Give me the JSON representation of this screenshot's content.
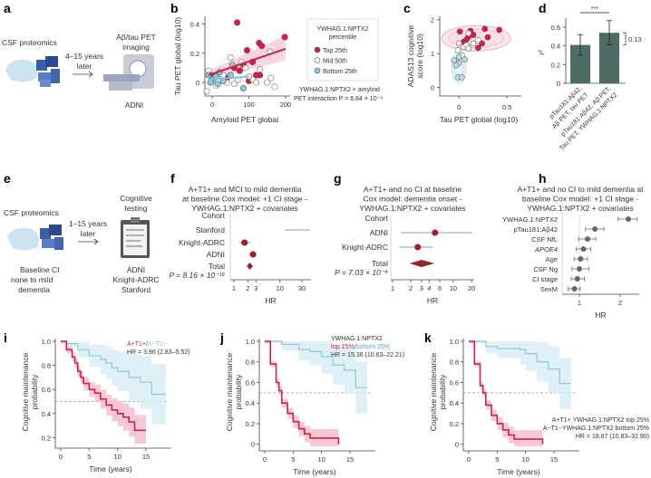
{
  "panels": {
    "a": "a",
    "b": "b",
    "c": "c",
    "d": "d",
    "e": "e",
    "f": "f",
    "g": "g",
    "h": "h",
    "i": "i",
    "j": "j",
    "k": "k"
  },
  "a": {
    "left": "CSF proteomics",
    "arrow1": "4–15 years",
    "arrow2": "later",
    "right1": "Aβ/tau PET",
    "right2": "imaging",
    "cohort": "ADNI"
  },
  "e": {
    "left": "CSF proteomics",
    "arrow1": "1–15 years",
    "arrow2": "later",
    "right1": "Cognitive",
    "right2": "testing",
    "bottom1": "Baseline CI",
    "bottom2": "none to mild",
    "bottom3": "dementia",
    "c1": "ADNI",
    "c2": "Knight-ADRC",
    "c3": "Stanford"
  },
  "colors": {
    "red": "#c8234a",
    "blue": "#8fc8dc",
    "grey": "#888888",
    "bar": "#4e6b66",
    "dark": "#9b2226"
  },
  "chart_data": [
    {
      "id": "b",
      "type": "scatter",
      "xlabel": "Amyloid PET global",
      "ylabel": "Tau PET global (log10)",
      "xticks": [
        "0",
        "100",
        "200"
      ],
      "yticks": [
        "0",
        "0.2",
        "0.4"
      ],
      "xlim": [
        -20,
        210
      ],
      "ylim": [
        -0.08,
        0.44
      ],
      "legend": {
        "title1": "YWHAG.1:NPTX2",
        "title2": "percentile",
        "items": [
          "Top 25th",
          "Mid 50th",
          "Bottom 25th"
        ],
        "placement": "right"
      },
      "note1": "YWHAG.1:NPTX2 × amyloid",
      "note2": "PET interaction P = 6.84 × 10⁻⁴",
      "series": [
        {
          "name": "Top 25th",
          "points": [
            [
              68,
              0.41
            ],
            [
              198,
              0.31
            ],
            [
              128,
              0.27
            ],
            [
              135,
              0.25
            ],
            [
              95,
              0.22
            ],
            [
              110,
              0.14
            ],
            [
              85,
              0.12
            ],
            [
              60,
              0.1
            ],
            [
              130,
              0.05
            ],
            [
              100,
              0.01
            ],
            [
              120,
              0.05
            ],
            [
              40,
              0.03
            ],
            [
              -5,
              0.05
            ],
            [
              75,
              0.08
            ]
          ]
        },
        {
          "name": "Mid 50th",
          "points": [
            [
              158,
              0.21
            ],
            [
              50,
              0.17
            ],
            [
              80,
              0.14
            ],
            [
              -10,
              0.08
            ],
            [
              20,
              0.06
            ],
            [
              30,
              0.05
            ],
            [
              90,
              0.1
            ],
            [
              130,
              0.09
            ],
            [
              150,
              0.0
            ],
            [
              170,
              -0.03
            ],
            [
              160,
              0.03
            ],
            [
              110,
              0.02
            ],
            [
              70,
              0.02
            ],
            [
              40,
              0.0
            ],
            [
              10,
              -0.02
            ],
            [
              -15,
              -0.06
            ],
            [
              60,
              -0.01
            ],
            [
              100,
              0.04
            ],
            [
              5,
              0.03
            ],
            [
              120,
              0.0
            ]
          ]
        },
        {
          "name": "Bottom 25th",
          "points": [
            [
              -10,
              0.05
            ],
            [
              0,
              0.02
            ],
            [
              10,
              0.04
            ],
            [
              20,
              0.07
            ],
            [
              55,
              0.12
            ],
            [
              85,
              -0.04
            ],
            [
              30,
              0.01
            ],
            [
              50,
              0.05
            ],
            [
              -5,
              0.0
            ],
            [
              15,
              -0.01
            ]
          ]
        }
      ],
      "fits": [
        {
          "name": "Top 25th",
          "x": [
            -10,
            200
          ],
          "y": [
            0.05,
            0.23
          ]
        },
        {
          "name": "Bottom 25th",
          "x": [
            -10,
            100
          ],
          "y": [
            0.02,
            0.04
          ]
        }
      ]
    },
    {
      "id": "c",
      "type": "scatter",
      "xlabel": "Tau PET global (log10)",
      "ylabel1": "ADAS13 cognitive",
      "ylabel2": "score (log10)",
      "xticks": [
        "0",
        "0.5"
      ],
      "yticks": [
        "0",
        "1",
        "2"
      ],
      "xlim": [
        -0.2,
        0.65
      ],
      "ylim": [
        -0.25,
        2.1
      ],
      "series": [
        {
          "name": "Top 25th",
          "points": [
            [
              0.01,
              1.65
            ],
            [
              0.12,
              1.67
            ],
            [
              0.27,
              1.73
            ],
            [
              0.42,
              1.7
            ],
            [
              0.3,
              1.48
            ],
            [
              0.24,
              1.3
            ],
            [
              0.2,
              1.17
            ],
            [
              0.1,
              1.5
            ],
            [
              0.05,
              1.35
            ],
            [
              0.15,
              1.55
            ],
            [
              0.08,
              1.42
            ]
          ]
        },
        {
          "name": "Mid 50th",
          "points": [
            [
              0.1,
              1.6
            ],
            [
              0.2,
              1.4
            ],
            [
              0.0,
              1.3
            ],
            [
              0.05,
              1.2
            ],
            [
              -0.01,
              1.1
            ],
            [
              0.08,
              1.25
            ],
            [
              0.15,
              1.3
            ],
            [
              0.03,
              0.95
            ],
            [
              0.1,
              1.15
            ]
          ]
        },
        {
          "name": "Bottom 25th",
          "points": [
            [
              -0.05,
              0.8
            ],
            [
              0.0,
              0.72
            ],
            [
              -0.03,
              0.65
            ],
            [
              0.06,
              0.83
            ],
            [
              -0.01,
              0.3
            ],
            [
              0.03,
              0.3
            ],
            [
              0.0,
              0.9
            ]
          ]
        }
      ]
    },
    {
      "id": "d",
      "type": "bar",
      "ylabel": "r²",
      "yticks": [
        "0",
        "0.2",
        "0.4",
        "0.6"
      ],
      "ylim": [
        0,
        0.7
      ],
      "categories": [
        [
          "pTau181:Aβ42,",
          "Aβ PET, tau PET"
        ],
        [
          "pTau181:Aβ42, Aβ PET,",
          "Tau PET, YWHAG.1:NPTX2"
        ]
      ],
      "values": [
        0.41,
        0.54
      ],
      "errors": [
        [
          0.3,
          0.52
        ],
        [
          0.41,
          0.67
        ]
      ],
      "significance": "***",
      "delta": "0.13"
    },
    {
      "id": "f",
      "type": "forest",
      "title": [
        "A+T1+ and MCI to mild dementia",
        "at baseline Cox model: +1 CI stage -",
        "YWHAG.1:NPTX2 + covariates"
      ],
      "header": "Cohort",
      "xlabel": "HR",
      "xticks": [
        "1",
        "2",
        "3",
        "10",
        "30"
      ],
      "xtickvals": [
        1,
        2,
        3,
        10,
        30
      ],
      "rows": [
        {
          "label": "Stanford",
          "hr": null,
          "lo": 13,
          "hi": 45
        },
        {
          "label": "Knight-ADRC",
          "hr": 1.7,
          "lo": 1.3,
          "hi": 2.3
        },
        {
          "label": "ADNI",
          "hr": 2.6,
          "lo": 2.1,
          "hi": 3.1
        }
      ],
      "total": {
        "label": "Total",
        "hr": 2.2,
        "lo": 1.9,
        "hi": 2.6
      },
      "p": "P = 8.16 × 10⁻¹⁶"
    },
    {
      "id": "g",
      "type": "forest",
      "title": [
        "A+T1+ and no CI at baseline",
        "Cox model: dementia onset -",
        "YWHAG.1:NPTX2 + covariates"
      ],
      "header": "Cohort",
      "xlabel": "HR",
      "xticks": [
        "1",
        "2",
        "3",
        "4",
        "6",
        "10",
        "20"
      ],
      "xtickvals": [
        1,
        2,
        3,
        4,
        6,
        10,
        20
      ],
      "rows": [
        {
          "label": "ADNI",
          "hr": 5.0,
          "lo": 1.4,
          "hi": 20.5
        },
        {
          "label": "Knight-ADRC",
          "hr": 2.6,
          "lo": 1.3,
          "hi": 4.6
        }
      ],
      "total": {
        "label": "Total",
        "hr": 3.0,
        "lo": 1.9,
        "hi": 4.9
      },
      "p": "P = 7.03 × 10⁻⁴"
    },
    {
      "id": "h",
      "type": "forest",
      "title": [
        "A+T1+ and no CI to mild dementia at",
        "baseline Cox model: +1 CI stage -",
        "YWHAG.1:NPTX2 + covariates"
      ],
      "xlabel": "HR",
      "xticks": [
        "1",
        "2"
      ],
      "xtickvals": [
        1,
        2
      ],
      "rows": [
        {
          "label": "YWHAG.1:NPTX2",
          "hr": 2.2,
          "lo": 1.95,
          "hi": 2.42
        },
        {
          "label": "pTau181:Aβ42",
          "hr": 1.38,
          "lo": 1.15,
          "hi": 1.6
        },
        {
          "label": "CSF NfL",
          "hr": 1.2,
          "lo": 0.98,
          "hi": 1.4
        },
        {
          "label": "APOE4",
          "hr": 1.1,
          "lo": 0.92,
          "hi": 1.28
        },
        {
          "label": "Age",
          "hr": 1.03,
          "lo": 0.87,
          "hi": 1.2
        },
        {
          "label": "CSF Ng",
          "hr": 1.0,
          "lo": 0.82,
          "hi": 1.23
        },
        {
          "label": "CI stage",
          "hr": 0.95,
          "lo": 0.8,
          "hi": 1.12
        },
        {
          "label": "SexM",
          "hr": 0.88,
          "lo": 0.72,
          "hi": 1.02
        }
      ]
    },
    {
      "id": "i",
      "type": "line",
      "xlabel": "Time (years)",
      "ylabel1": "Cognitive maintenance",
      "ylabel2": "probability",
      "xticks": [
        "0",
        "5",
        "10",
        "15"
      ],
      "yticks": [
        "0.2",
        "0.4",
        "0.6",
        "0.8",
        "1.0"
      ],
      "ylim": [
        0.15,
        1.0
      ],
      "legend": [
        "A+T1+",
        "/",
        "A−T1−"
      ],
      "hr": "HR = 3.96 (2.83–5.52)",
      "series": [
        {
          "name": "A+T1+",
          "points": [
            [
              0,
              1
            ],
            [
              1,
              0.93
            ],
            [
              2,
              0.87
            ],
            [
              2.5,
              0.82
            ],
            [
              3,
              0.75
            ],
            [
              3.5,
              0.7
            ],
            [
              4,
              0.65
            ],
            [
              5,
              0.6
            ],
            [
              6,
              0.57
            ],
            [
              7,
              0.52
            ],
            [
              8,
              0.47
            ],
            [
              9,
              0.43
            ],
            [
              10,
              0.4
            ],
            [
              11,
              0.37
            ],
            [
              12,
              0.33
            ],
            [
              13,
              0.26
            ],
            [
              15,
              0.26
            ]
          ]
        },
        {
          "name": "A−T1−",
          "points": [
            [
              0,
              1
            ],
            [
              1,
              0.98
            ],
            [
              3,
              0.93
            ],
            [
              5,
              0.88
            ],
            [
              7,
              0.85
            ],
            [
              8,
              0.82
            ],
            [
              9,
              0.78
            ],
            [
              10,
              0.75
            ],
            [
              12,
              0.7
            ],
            [
              14,
              0.66
            ],
            [
              16,
              0.56
            ],
            [
              18.5,
              0.56
            ]
          ]
        }
      ]
    },
    {
      "id": "j",
      "type": "line",
      "xlabel": "Time (years)",
      "ylabel1": "Cognitive maintenance",
      "ylabel2": "probability",
      "xticks": [
        "0",
        "5",
        "10",
        "15"
      ],
      "yticks": [
        "0",
        "0.2",
        "0.4",
        "0.6",
        "0.8",
        "1.0"
      ],
      "ylim": [
        -0.02,
        1.0
      ],
      "legend": [
        "YWHAG.1:NPTX2",
        "top 25%",
        "/",
        "bottom 25%"
      ],
      "hr": "HR = 15.36 (10.63–22.21)",
      "series": [
        {
          "name": "top 25%",
          "points": [
            [
              0,
              1
            ],
            [
              1,
              0.78
            ],
            [
              2,
              0.6
            ],
            [
              2.5,
              0.52
            ],
            [
              3,
              0.4
            ],
            [
              4,
              0.3
            ],
            [
              5,
              0.22
            ],
            [
              6,
              0.15
            ],
            [
              7,
              0.1
            ],
            [
              8,
              0.06
            ],
            [
              13,
              0.06
            ],
            [
              13,
              0
            ]
          ]
        },
        {
          "name": "bottom 25%",
          "points": [
            [
              0,
              1
            ],
            [
              3,
              0.97
            ],
            [
              6,
              0.92
            ],
            [
              8,
              0.9
            ],
            [
              10,
              0.85
            ],
            [
              12,
              0.77
            ],
            [
              14,
              0.72
            ],
            [
              16,
              0.55
            ],
            [
              18,
              0.55
            ]
          ]
        }
      ]
    },
    {
      "id": "k",
      "type": "line",
      "xlabel": "Time (years)",
      "ylabel1": "Cognitive maintenance",
      "ylabel2": "probability",
      "xticks": [
        "0",
        "5",
        "10",
        "15"
      ],
      "yticks": [
        "0",
        "0.2",
        "0.4",
        "0.6",
        "0.8",
        "1.0"
      ],
      "ylim": [
        -0.02,
        1.0
      ],
      "legend": [
        "A+T1+ YWHAG.1:NPTX2 top 25%",
        "A−T1−YWHAG.1:NPTX2 bottom 25%"
      ],
      "hr": "HR = 18.87 (10.83–32.90)",
      "series": [
        {
          "name": "A+T1+ top 25%",
          "points": [
            [
              0,
              1
            ],
            [
              1,
              0.78
            ],
            [
              2,
              0.57
            ],
            [
              2.5,
              0.5
            ],
            [
              3,
              0.38
            ],
            [
              4,
              0.28
            ],
            [
              5,
              0.2
            ],
            [
              6,
              0.14
            ],
            [
              7,
              0.09
            ],
            [
              8,
              0.05
            ],
            [
              13,
              0.05
            ],
            [
              13,
              0
            ]
          ]
        },
        {
          "name": "A−T1− bottom 25%",
          "points": [
            [
              0,
              1
            ],
            [
              3,
              0.95
            ],
            [
              5,
              0.93
            ],
            [
              9,
              0.92
            ],
            [
              10,
              0.88
            ],
            [
              12,
              0.8
            ],
            [
              14,
              0.73
            ],
            [
              16,
              0.59
            ],
            [
              18,
              0.59
            ]
          ]
        }
      ]
    }
  ]
}
